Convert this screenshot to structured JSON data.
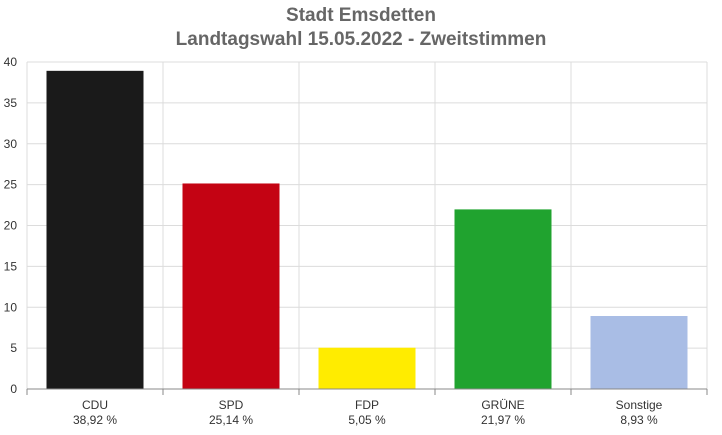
{
  "chart_data": {
    "type": "bar",
    "title": "Stadt Emsdetten",
    "subtitle": "Landtagswahl 15.05.2022  - Zweitstimmen",
    "categories": [
      "CDU",
      "SPD",
      "FDP",
      "GRÜNE",
      "Sonstige"
    ],
    "values": [
      38.92,
      25.14,
      5.05,
      21.97,
      8.93
    ],
    "value_labels": [
      "38,92 %",
      "25,14 %",
      "5,05 %",
      "21,97 %",
      "8,93 %"
    ],
    "colors": [
      "#1a1a1a",
      "#c40313",
      "#ffec00",
      "#20a32f",
      "#a9bde5"
    ],
    "ylim": [
      0,
      40
    ],
    "yticks": [
      0,
      5,
      10,
      15,
      20,
      25,
      30,
      35,
      40
    ],
    "grid": true,
    "legend": "none"
  }
}
